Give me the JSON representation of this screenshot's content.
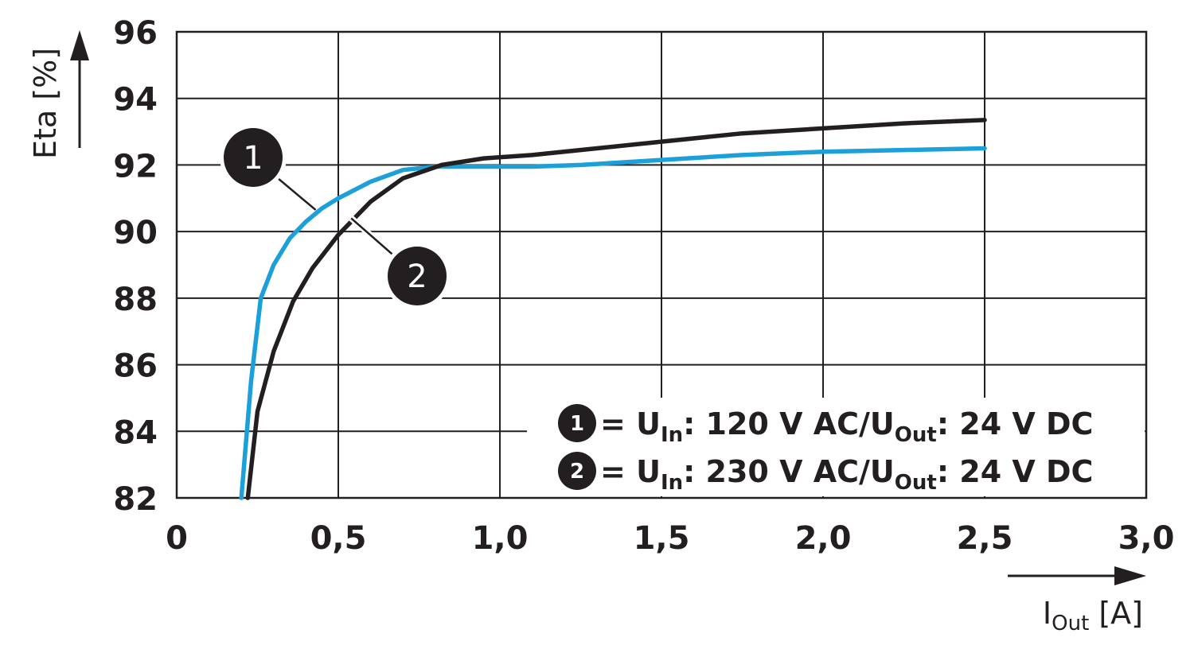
{
  "chart_data": {
    "type": "line",
    "xlabel": {
      "main": "I",
      "sub": "Out",
      "unit": " [A]"
    },
    "ylabel": "Eta [%]",
    "xlim": [
      0,
      3.0
    ],
    "ylim": [
      82,
      96
    ],
    "x_ticks": [
      "0",
      "0,5",
      "1,0",
      "1,5",
      "2,0",
      "2,5",
      "3,0"
    ],
    "x_tick_values": [
      0,
      0.5,
      1.0,
      1.5,
      2.0,
      2.5,
      3.0
    ],
    "y_ticks": [
      "82",
      "84",
      "86",
      "88",
      "90",
      "92",
      "94",
      "96"
    ],
    "y_tick_values": [
      82,
      84,
      86,
      88,
      90,
      92,
      94,
      96
    ],
    "grid": true,
    "legend_position": "bottom-right",
    "series": [
      {
        "marker": "1",
        "color": "#1ba0da",
        "x": [
          0.2,
          0.23,
          0.26,
          0.3,
          0.35,
          0.4,
          0.45,
          0.5,
          0.6,
          0.7,
          0.8,
          0.95,
          1.1,
          1.25,
          1.5,
          1.75,
          2.0,
          2.25,
          2.5
        ],
        "y": [
          82.0,
          85.5,
          88.0,
          89.0,
          89.8,
          90.3,
          90.7,
          91.0,
          91.5,
          91.85,
          91.95,
          91.95,
          91.95,
          92.0,
          92.15,
          92.3,
          92.4,
          92.45,
          92.5
        ]
      },
      {
        "marker": "2",
        "color": "#231f20",
        "x": [
          0.22,
          0.25,
          0.3,
          0.36,
          0.42,
          0.5,
          0.6,
          0.7,
          0.82,
          0.95,
          1.1,
          1.3,
          1.5,
          1.75,
          2.0,
          2.25,
          2.5
        ],
        "y": [
          82.0,
          84.6,
          86.4,
          87.9,
          88.9,
          89.9,
          90.9,
          91.6,
          92.0,
          92.2,
          92.3,
          92.5,
          92.7,
          92.95,
          93.1,
          93.25,
          93.35
        ]
      }
    ],
    "legend": [
      {
        "marker": "1",
        "prefix": " = U",
        "sub1": "In",
        "mid": ": 120 V AC/U",
        "sub2": "Out",
        "suffix": ": 24 V DC"
      },
      {
        "marker": "2",
        "prefix": " = U",
        "sub1": "In",
        "mid": ": 230 V AC/U",
        "sub2": "Out",
        "suffix": ": 24 V DC"
      }
    ],
    "callouts": [
      {
        "marker": "1",
        "at_x": 0.43,
        "at_y": 90.65
      },
      {
        "marker": "2",
        "at_x": 0.54,
        "at_y": 90.4
      }
    ]
  }
}
